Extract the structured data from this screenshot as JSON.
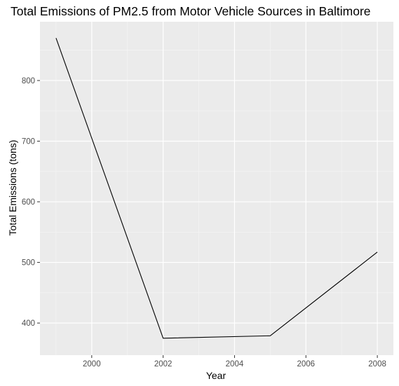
{
  "chart_data": {
    "type": "line",
    "title": "Total Emissions of PM2.5 from Motor Vehicle Sources in Baltimore",
    "xlabel": "Year",
    "ylabel": "Total Emissions (tons)",
    "x": [
      1999,
      2002,
      2005,
      2008
    ],
    "series": [
      {
        "values": [
          870,
          375,
          379,
          517
        ]
      }
    ],
    "xlim": [
      1998.55,
      2008.45
    ],
    "ylim": [
      347,
      897
    ],
    "xticks": [
      2000,
      2002,
      2004,
      2006,
      2008
    ],
    "xtick_labels": [
      "2000",
      "2002",
      "2004",
      "2006",
      "2008"
    ],
    "xminor": [
      1999,
      2001,
      2003,
      2005,
      2007
    ],
    "yticks": [
      400,
      500,
      600,
      700,
      800
    ],
    "ytick_labels": [
      "400",
      "500",
      "600",
      "700",
      "800"
    ],
    "yminor": [
      450,
      550,
      650,
      750,
      850
    ],
    "grid": true,
    "legend": "none",
    "colors": {
      "panel_background": "#ebebeb",
      "grid_major": "#ffffff",
      "grid_minor": "#f5f5f5",
      "line": "#000000",
      "tick": "#333333",
      "tick_label": "#4d4d4d"
    }
  }
}
